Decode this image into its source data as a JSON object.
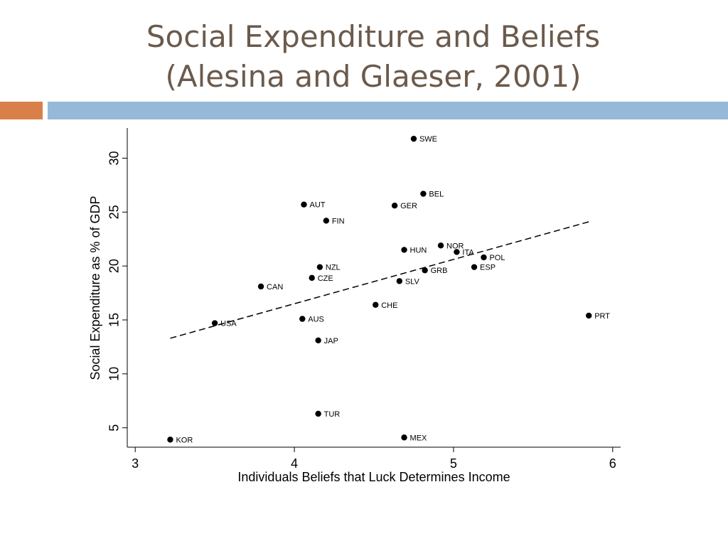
{
  "slide": {
    "title_line1": "Social Expenditure and Beliefs",
    "title_line2": "(Alesina and Glaeser, 2001)"
  },
  "colors": {
    "title": "#6b5a4c",
    "accent_bar": "#d9804a",
    "main_bar": "#97b9d9",
    "points": "#000000"
  },
  "chart_data": {
    "type": "scatter",
    "xlabel": "Individuals Beliefs that Luck Determines Income",
    "ylabel": "Social Expenditure as % of GDP",
    "xlim": [
      2.95,
      6.05
    ],
    "ylim": [
      3.2,
      32.8
    ],
    "xticks": [
      3,
      4,
      5,
      6
    ],
    "yticks": [
      5,
      10,
      15,
      20,
      25,
      30
    ],
    "grid": false,
    "legend": "none",
    "trend_line": {
      "style": "dashed",
      "x": [
        3.22,
        5.85
      ],
      "y": [
        13.3,
        24.1
      ]
    },
    "points": [
      {
        "label": "SWE",
        "x": 4.75,
        "y": 31.8
      },
      {
        "label": "BEL",
        "x": 4.81,
        "y": 26.7
      },
      {
        "label": "AUT",
        "x": 4.06,
        "y": 25.7
      },
      {
        "label": "GER",
        "x": 4.63,
        "y": 25.6
      },
      {
        "label": "FIN",
        "x": 4.2,
        "y": 24.2
      },
      {
        "label": "NOR",
        "x": 4.92,
        "y": 21.9
      },
      {
        "label": "HUN",
        "x": 4.69,
        "y": 21.5
      },
      {
        "label": "ITA",
        "x": 5.02,
        "y": 21.3
      },
      {
        "label": "POL",
        "x": 5.19,
        "y": 20.8
      },
      {
        "label": "NZL",
        "x": 4.16,
        "y": 19.9
      },
      {
        "label": "ESP",
        "x": 5.13,
        "y": 19.9
      },
      {
        "label": "GRB",
        "x": 4.82,
        "y": 19.6
      },
      {
        "label": "CZE",
        "x": 4.11,
        "y": 18.9
      },
      {
        "label": "SLV",
        "x": 4.66,
        "y": 18.6
      },
      {
        "label": "CAN",
        "x": 3.79,
        "y": 18.1
      },
      {
        "label": "CHE",
        "x": 4.51,
        "y": 16.4
      },
      {
        "label": "PRT",
        "x": 5.85,
        "y": 15.4
      },
      {
        "label": "AUS",
        "x": 4.05,
        "y": 15.1
      },
      {
        "label": "USA",
        "x": 3.5,
        "y": 14.7
      },
      {
        "label": "JAP",
        "x": 4.15,
        "y": 13.1
      },
      {
        "label": "TUR",
        "x": 4.15,
        "y": 6.3
      },
      {
        "label": "MEX",
        "x": 4.69,
        "y": 4.1
      },
      {
        "label": "KOR",
        "x": 3.22,
        "y": 3.9
      }
    ]
  }
}
